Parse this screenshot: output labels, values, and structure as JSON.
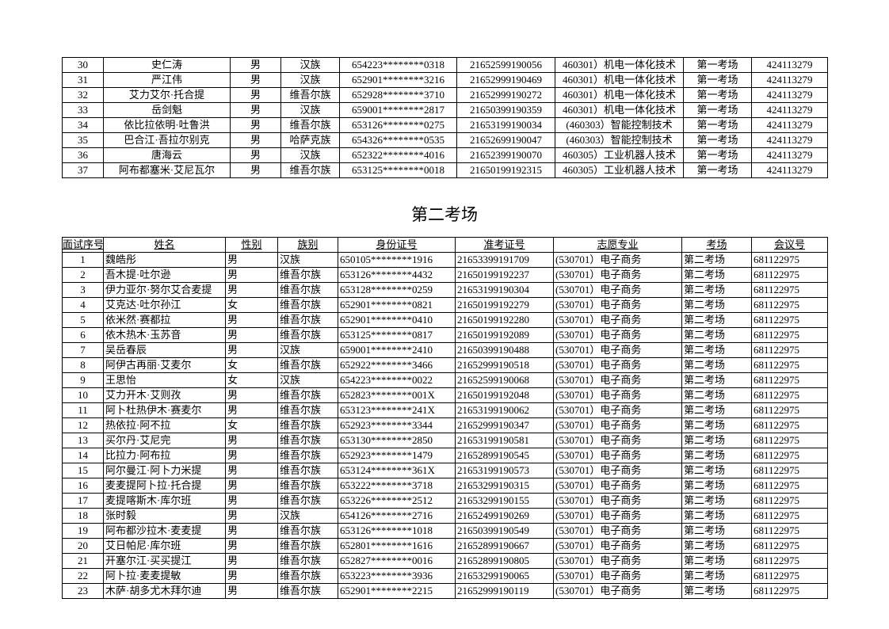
{
  "table1": {
    "columns_align": [
      "center",
      "center",
      "center",
      "center",
      "center",
      "center",
      "center",
      "center",
      "center"
    ],
    "rows": [
      [
        "30",
        "史仁涛",
        "男",
        "汉族",
        "654223********0318",
        "21652599190056",
        "460301）机电一体化技术",
        "第一考场",
        "424113279"
      ],
      [
        "31",
        "严江伟",
        "男",
        "汉族",
        "652901********3216",
        "21652999190469",
        "460301）机电一体化技术",
        "第一考场",
        "424113279"
      ],
      [
        "32",
        "艾力艾尔·托合提",
        "男",
        "维吾尔族",
        "652928********3710",
        "21652999190272",
        "460301）机电一体化技术",
        "第一考场",
        "424113279"
      ],
      [
        "33",
        "岳剑魁",
        "男",
        "汉族",
        "659001********2817",
        "21650399190359",
        "460301）机电一体化技术",
        "第一考场",
        "424113279"
      ],
      [
        "34",
        "依比拉依明·吐鲁洪",
        "男",
        "维吾尔族",
        "653126********0275",
        "21653199190034",
        "(460303）智能控制技术",
        "第一考场",
        "424113279"
      ],
      [
        "35",
        "巴合江·吾拉尔别克",
        "男",
        "哈萨克族",
        "654326********0535",
        "21652699190047",
        "(460303）智能控制技术",
        "第一考场",
        "424113279"
      ],
      [
        "36",
        "唐海云",
        "男",
        "汉族",
        "652322********4016",
        "21652399190070",
        "460305）工业机器人技术",
        "第一考场",
        "424113279"
      ],
      [
        "37",
        "阿布都塞米·艾尼瓦尔",
        "男",
        "维吾尔族",
        "653125********0018",
        "21650199192315",
        "460305）工业机器人技术",
        "第一考场",
        "424113279"
      ]
    ]
  },
  "section2_title": "第二考场",
  "table2": {
    "headers": [
      "面试序号",
      "姓名",
      "性别",
      "族别",
      "身份证号",
      "准考证号",
      "志愿专业",
      "考场",
      "会议号"
    ],
    "rows": [
      [
        "1",
        "魏皓彤",
        "男",
        "汉族",
        "650105********1916",
        "21653399191709",
        "(530701）电子商务",
        "第二考场",
        "681122975"
      ],
      [
        "2",
        "吾木提·吐尔逊",
        "男",
        "维吾尔族",
        "653126********4432",
        "21650199192237",
        "(530701）电子商务",
        "第二考场",
        "681122975"
      ],
      [
        "3",
        "伊力亚尔·努尔艾合麦提",
        "男",
        "维吾尔族",
        "653128********0259",
        "21653199190304",
        "(530701）电子商务",
        "第二考场",
        "681122975"
      ],
      [
        "4",
        "艾克达·吐尔孙江",
        "女",
        "维吾尔族",
        "652901********0821",
        "21650199192279",
        "(530701）电子商务",
        "第二考场",
        "681122975"
      ],
      [
        "5",
        "依米然·赛都拉",
        "男",
        "维吾尔族",
        "652901********0410",
        "21650199192280",
        "(530701）电子商务",
        "第二考场",
        "681122975"
      ],
      [
        "6",
        "依木热木·玉苏音",
        "男",
        "维吾尔族",
        "653125********0817",
        "21650199192089",
        "(530701）电子商务",
        "第二考场",
        "681122975"
      ],
      [
        "7",
        "吴岳春辰",
        "男",
        "汉族",
        "659001********2410",
        "21650399190488",
        "(530701）电子商务",
        "第二考场",
        "681122975"
      ],
      [
        "8",
        "阿伊古再丽·艾麦尔",
        "女",
        "维吾尔族",
        "652922********3466",
        "21652999190518",
        "(530701）电子商务",
        "第二考场",
        "681122975"
      ],
      [
        "9",
        "王思怡",
        "女",
        "汉族",
        "654223********0022",
        "21652599190068",
        "(530701）电子商务",
        "第二考场",
        "681122975"
      ],
      [
        "10",
        "艾力开木·艾则孜",
        "男",
        "维吾尔族",
        "652823********001X",
        "21650199192048",
        "(530701）电子商务",
        "第二考场",
        "681122975"
      ],
      [
        "11",
        "阿卜杜热伊木·赛麦尔",
        "男",
        "维吾尔族",
        "653123********241X",
        "21653199190062",
        "(530701）电子商务",
        "第二考场",
        "681122975"
      ],
      [
        "12",
        "热依拉·阿不拉",
        "女",
        "维吾尔族",
        "652923********3344",
        "21652999190347",
        "(530701）电子商务",
        "第二考场",
        "681122975"
      ],
      [
        "13",
        "买尔丹·艾尼完",
        "男",
        "维吾尔族",
        "653130********2850",
        "21653199190581",
        "(530701）电子商务",
        "第二考场",
        "681122975"
      ],
      [
        "14",
        "比拉力·阿布拉",
        "男",
        "维吾尔族",
        "652923********1479",
        "21652899190545",
        "(530701）电子商务",
        "第二考场",
        "681122975"
      ],
      [
        "15",
        "阿尔曼江·阿卜力米提",
        "男",
        "维吾尔族",
        "653124********361X",
        "21653199190573",
        "(530701）电子商务",
        "第二考场",
        "681122975"
      ],
      [
        "16",
        "麦麦提阿卜拉·托合提",
        "男",
        "维吾尔族",
        "653222********3718",
        "21653299190315",
        "(530701）电子商务",
        "第二考场",
        "681122975"
      ],
      [
        "17",
        "麦提喀斯木·库尔班",
        "男",
        "维吾尔族",
        "653226********2512",
        "21653299190155",
        "(530701）电子商务",
        "第二考场",
        "681122975"
      ],
      [
        "18",
        "张时毅",
        "男",
        "汉族",
        "654126********2716",
        "21652499190269",
        "(530701）电子商务",
        "第二考场",
        "681122975"
      ],
      [
        "19",
        "阿布都沙拉木·麦麦提",
        "男",
        "维吾尔族",
        "653126********1018",
        "21650399190549",
        "(530701）电子商务",
        "第二考场",
        "681122975"
      ],
      [
        "20",
        "艾日帕尼·库尔班",
        "男",
        "维吾尔族",
        "652801********1616",
        "21652899190667",
        "(530701）电子商务",
        "第二考场",
        "681122975"
      ],
      [
        "21",
        "开塞尔江·买买提江",
        "男",
        "维吾尔族",
        "652827********0016",
        "21652899190805",
        "(530701）电子商务",
        "第二考场",
        "681122975"
      ],
      [
        "22",
        "阿卜拉·麦麦提敏",
        "男",
        "维吾尔族",
        "653223********3936",
        "21653299190065",
        "(530701）电子商务",
        "第二考场",
        "681122975"
      ],
      [
        "23",
        "木萨·胡多尤木拜尔迪",
        "男",
        "维吾尔族",
        "652901********2215",
        "21652999190119",
        "(530701）电子商务",
        "第二考场",
        "681122975"
      ]
    ]
  }
}
